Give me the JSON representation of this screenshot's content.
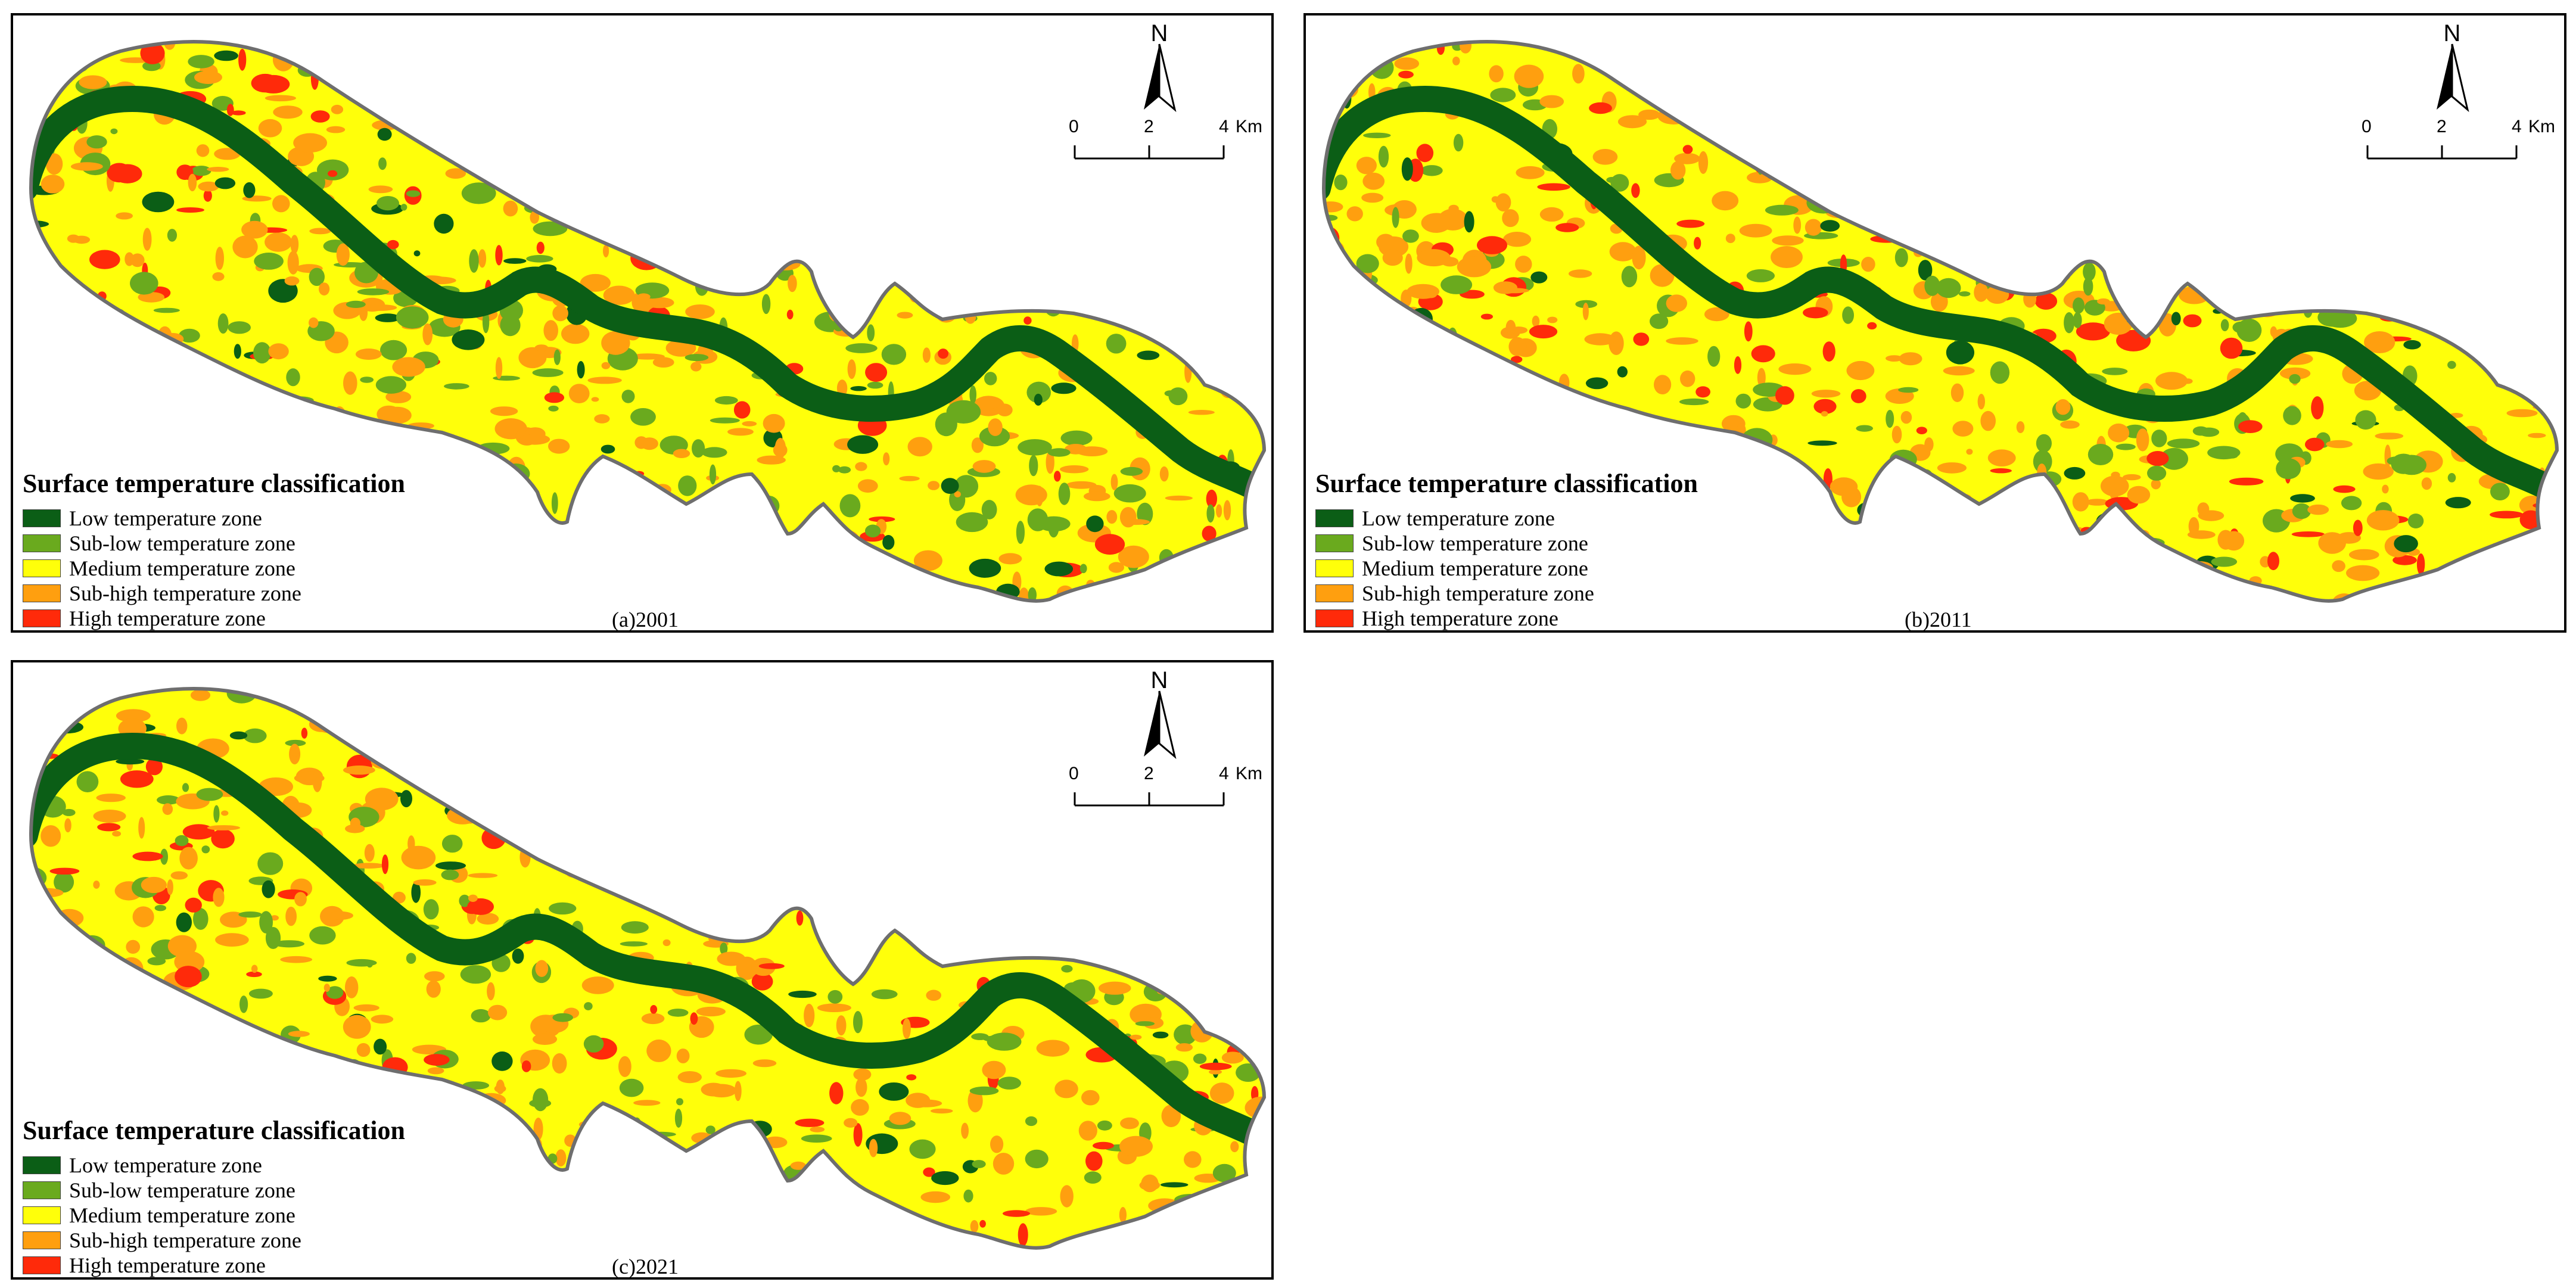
{
  "legend": {
    "title": "Surface temperature classification",
    "items": [
      {
        "label": "Low temperature zone",
        "color": "#0b5e16"
      },
      {
        "label": "Sub-low temperature zone",
        "color": "#6aaa1e"
      },
      {
        "label": "Medium temperature zone",
        "color": "#ffff0a"
      },
      {
        "label": "Sub-high temperature zone",
        "color": "#ff9f0f"
      },
      {
        "label": "High temperature zone",
        "color": "#ff2a0a"
      }
    ]
  },
  "north_label": "N",
  "scale": {
    "t0": "0",
    "t1": "2",
    "t2": "4",
    "unit": "Km"
  },
  "panels": [
    {
      "label": "(a)2001"
    },
    {
      "label": "(b)2011"
    },
    {
      "label": "(c)2021"
    }
  ],
  "colors": {
    "boundary": "#6e6e6e",
    "river": "#0b5e16"
  },
  "icons": [
    "north-arrow-icon"
  ]
}
